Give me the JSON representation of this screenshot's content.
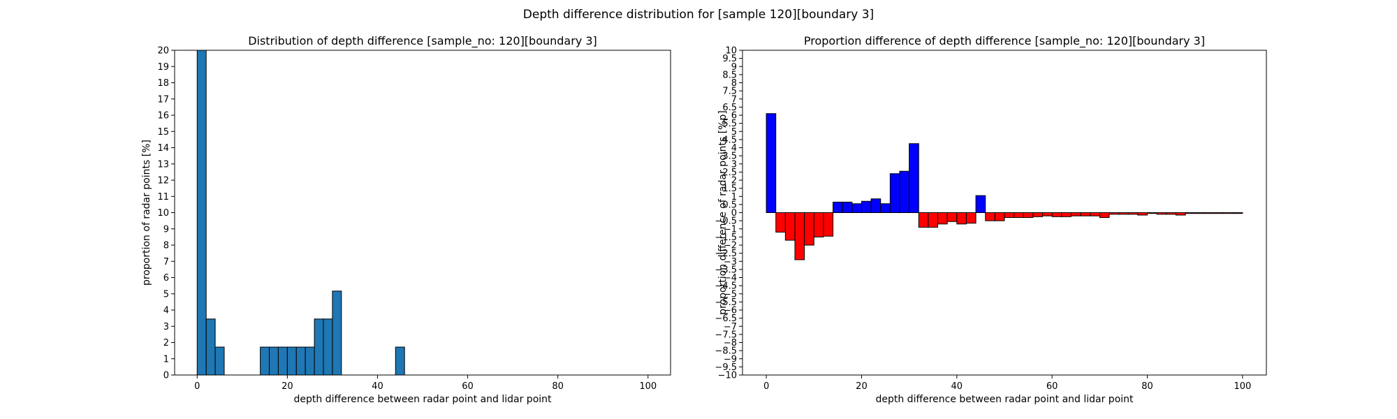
{
  "figure": {
    "suptitle": "Depth difference distribution for [sample 120][boundary 3]"
  },
  "chart_data": [
    {
      "type": "bar",
      "title": "Distribution of depth difference [sample_no: 120][boundary 3]",
      "xlabel": "depth difference between radar point and lidar point",
      "ylabel": "proportion of radar points [%]",
      "xlim": [
        -5,
        105
      ],
      "ylim": [
        0,
        20
      ],
      "xticks": [
        0,
        20,
        40,
        60,
        80,
        100
      ],
      "yticks": [
        0,
        1,
        2,
        3,
        4,
        5,
        6,
        7,
        8,
        9,
        10,
        11,
        12,
        13,
        14,
        15,
        16,
        17,
        18,
        19,
        20
      ],
      "bin_width": 2,
      "bin_start": 0,
      "color": "#1f77b4",
      "edgecolor": "#000000",
      "values": [
        20,
        3.45,
        1.72,
        0,
        0,
        0,
        0,
        1.72,
        1.72,
        1.72,
        1.72,
        1.72,
        1.72,
        3.45,
        3.45,
        5.17,
        0,
        0,
        0,
        0,
        0,
        0,
        1.72,
        0,
        0,
        0,
        0,
        0,
        0,
        0,
        0,
        0,
        0,
        0,
        0,
        0,
        0,
        0,
        0,
        0,
        0,
        0,
        0,
        0,
        0,
        0,
        0,
        0,
        0,
        0
      ],
      "grid": false
    },
    {
      "type": "bar",
      "title": "Proportion difference of depth difference [sample_no: 120][boundary 3]",
      "xlabel": "depth difference between radar point and lidar point",
      "ylabel": "proportion difference of radar points [%p]",
      "xlim": [
        -5,
        105
      ],
      "ylim": [
        -10,
        10
      ],
      "xticks": [
        0,
        20,
        40,
        60,
        80,
        100
      ],
      "yticks": [
        -10,
        -9.5,
        -9,
        -8.5,
        -8,
        -7.5,
        -7,
        -6.5,
        -6,
        -5.5,
        -5,
        -4.5,
        -4,
        -3.5,
        -3,
        -2.5,
        -2,
        -1.5,
        -1,
        -0.5,
        0,
        0.5,
        1,
        1.5,
        2,
        2.5,
        3,
        3.5,
        4,
        4.5,
        5,
        5.5,
        6,
        6.5,
        7,
        7.5,
        8,
        8.5,
        9,
        9.5,
        10
      ],
      "bin_width": 2,
      "bin_start": 0,
      "positive_color": "#0000ff",
      "negative_color": "#ff0000",
      "edgecolor": "#000000",
      "values": [
        6.1,
        -1.2,
        -1.7,
        -2.9,
        -2.0,
        -1.5,
        -1.45,
        0.65,
        0.65,
        0.55,
        0.7,
        0.85,
        0.55,
        2.4,
        2.55,
        4.25,
        -0.9,
        -0.9,
        -0.7,
        -0.55,
        -0.7,
        -0.65,
        1.05,
        -0.5,
        -0.5,
        -0.3,
        -0.3,
        -0.3,
        -0.25,
        -0.2,
        -0.25,
        -0.25,
        -0.2,
        -0.2,
        -0.2,
        -0.3,
        -0.1,
        -0.1,
        -0.1,
        -0.15,
        -0.05,
        -0.1,
        -0.1,
        -0.15,
        -0.05,
        -0.05,
        -0.05,
        -0.05,
        -0.05,
        -0.05
      ],
      "grid": false
    }
  ]
}
